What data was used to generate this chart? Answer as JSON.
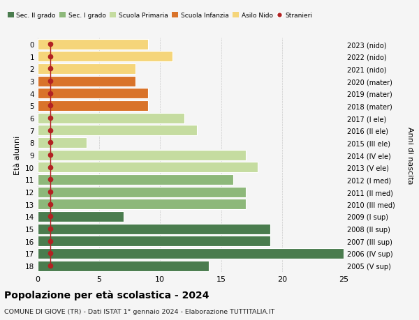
{
  "ages": [
    0,
    1,
    2,
    3,
    4,
    5,
    6,
    7,
    8,
    9,
    10,
    11,
    12,
    13,
    14,
    15,
    16,
    17,
    18
  ],
  "values": [
    9,
    11,
    8,
    8,
    9,
    9,
    12,
    13,
    4,
    17,
    18,
    16,
    17,
    17,
    7,
    19,
    19,
    25,
    14
  ],
  "bar_colors": [
    "#f5d57a",
    "#f5d57a",
    "#f5d57a",
    "#d9732a",
    "#d9732a",
    "#d9732a",
    "#c5dca0",
    "#c5dca0",
    "#c5dca0",
    "#c5dca0",
    "#c5dca0",
    "#8db87a",
    "#8db87a",
    "#8db87a",
    "#4a7c4e",
    "#4a7c4e",
    "#4a7c4e",
    "#4a7c4e",
    "#4a7c4e"
  ],
  "right_labels": [
    "2023 (nido)",
    "2022 (nido)",
    "2021 (nido)",
    "2020 (mater)",
    "2019 (mater)",
    "2018 (mater)",
    "2017 (I ele)",
    "2016 (II ele)",
    "2015 (III ele)",
    "2014 (IV ele)",
    "2013 (V ele)",
    "2012 (I med)",
    "2011 (II med)",
    "2010 (III med)",
    "2009 (I sup)",
    "2008 (II sup)",
    "2007 (III sup)",
    "2006 (IV sup)",
    "2005 (V sup)"
  ],
  "colors": {
    "sec2": "#4a7c4e",
    "sec1": "#8db87a",
    "primaria": "#c5dca0",
    "infanzia": "#d9732a",
    "nido": "#f5d57a"
  },
  "stranieri_color": "#b22222",
  "title": "Popolazione per età scolastica - 2024",
  "subtitle": "COMUNE DI GIOVE (TR) - Dati ISTAT 1° gennaio 2024 - Elaborazione TUTTITALIA.IT",
  "ylabel_left": "Età alunni",
  "ylabel_right": "Anni di nascita",
  "xlim": [
    0,
    25
  ],
  "xticks": [
    0,
    5,
    10,
    15,
    20,
    25
  ],
  "bg_color": "#f5f5f5",
  "plot_bg": "#f5f5f5",
  "grid_color": "#cccccc"
}
